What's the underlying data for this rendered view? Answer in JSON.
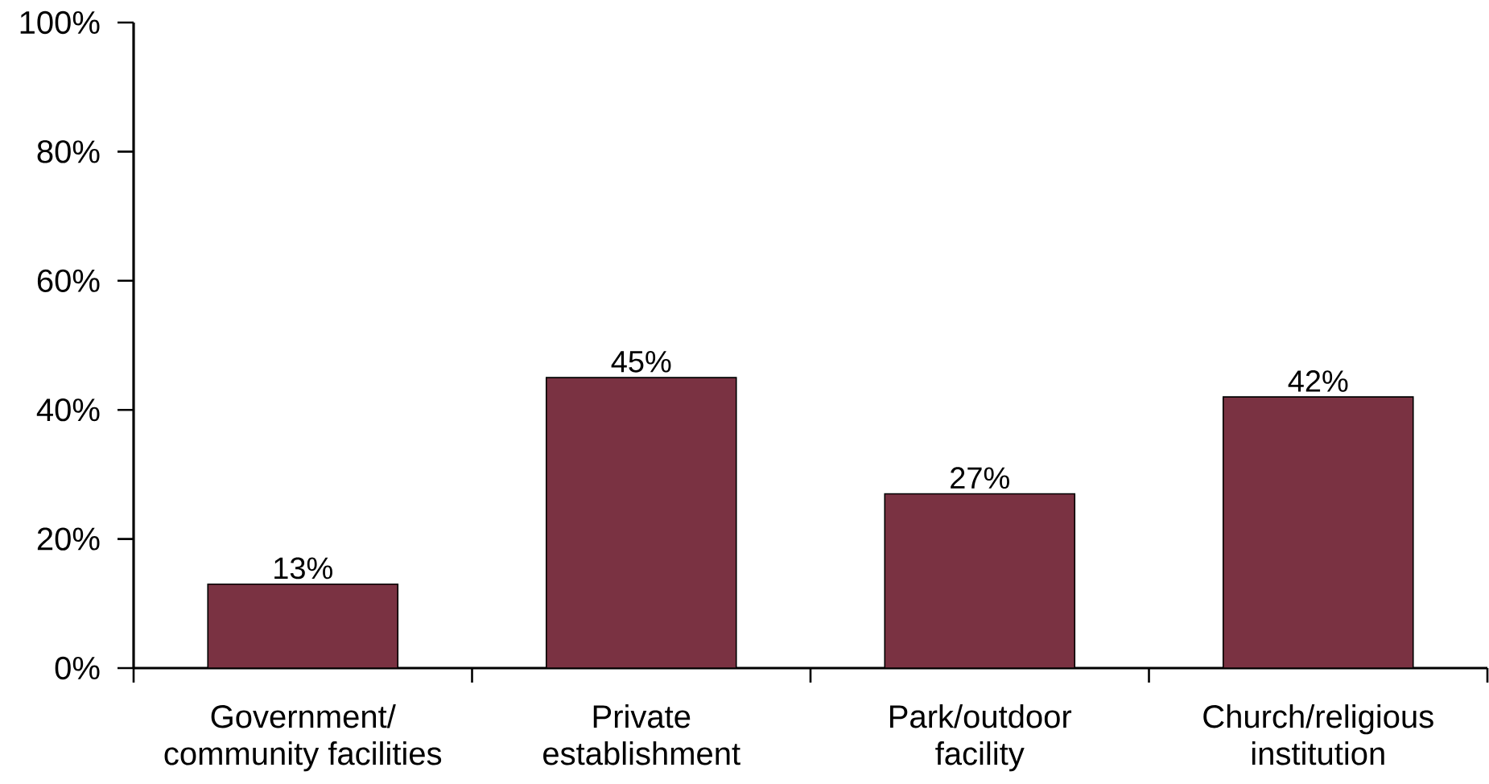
{
  "chart_data": {
    "type": "bar",
    "categories": [
      "Government/ community facilities",
      "Private establishment",
      "Park/outdoor facility",
      "Church/religious institution"
    ],
    "values": [
      13,
      45,
      27,
      42
    ],
    "value_labels": [
      "13%",
      "45%",
      "27%",
      "42%"
    ],
    "color": "#7a3242",
    "ylim": [
      0,
      100
    ],
    "yticks": [
      {
        "value": 0,
        "label": "0%"
      },
      {
        "value": 20,
        "label": "20%"
      },
      {
        "value": 40,
        "label": "40%"
      },
      {
        "value": 60,
        "label": "60%"
      },
      {
        "value": 80,
        "label": "80%"
      },
      {
        "value": 100,
        "label": "100%"
      }
    ],
    "grid": false
  }
}
